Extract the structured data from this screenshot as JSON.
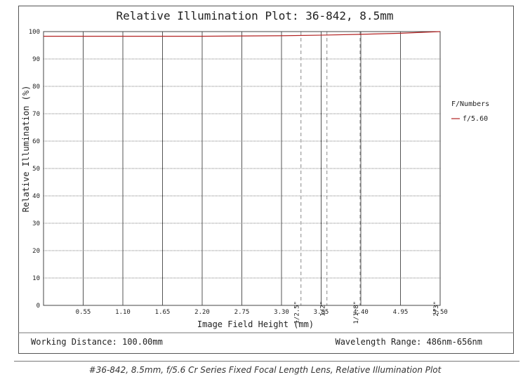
{
  "chart_data": {
    "type": "line",
    "title": "Relative Illumination Plot: 36-842, 8.5mm",
    "xlabel": "Image Field Height (mm)",
    "ylabel": "Relative Illumination (%)",
    "xlim": [
      0,
      5.5
    ],
    "ylim": [
      0,
      100
    ],
    "x_ticks": [
      "0.55",
      "1.10",
      "1.65",
      "2.20",
      "2.75",
      "3.30",
      "3.85",
      "4.40",
      "4.95",
      "5.50"
    ],
    "y_ticks": [
      "0",
      "10",
      "20",
      "30",
      "40",
      "50",
      "60",
      "70",
      "80",
      "90",
      "100"
    ],
    "grid": true,
    "legend": {
      "title": "F/Numbers",
      "position": "right"
    },
    "series": [
      {
        "name": "f/5.60",
        "color": "#b22222",
        "x": [
          0,
          0.55,
          1.1,
          1.65,
          2.2,
          2.75,
          3.3,
          3.85,
          4.4,
          4.95,
          5.5
        ],
        "y": [
          98.3,
          98.3,
          98.3,
          98.3,
          98.3,
          98.4,
          98.5,
          98.7,
          99.0,
          99.4,
          100
        ]
      }
    ],
    "sensor_markers": [
      {
        "label": "1/2.5\"",
        "x": [
          3.57,
          3.57
        ]
      },
      {
        "label": "1/2\"",
        "x": [
          3.93,
          3.93
        ]
      },
      {
        "label": "1/1.8\"",
        "x": [
          4.39,
          4.39
        ]
      },
      {
        "label": "2/3\"",
        "x": [
          5.5,
          5.5
        ]
      }
    ],
    "marker_color": "#888888"
  },
  "footer": {
    "working_distance": "Working Distance: 100.00mm",
    "wavelength_range": "Wavelength Range: 486nm-656nm"
  },
  "caption": "#36-842, 8.5mm, f/5.6 Cr Series Fixed Focal Length Lens, Relative Illumination Plot"
}
